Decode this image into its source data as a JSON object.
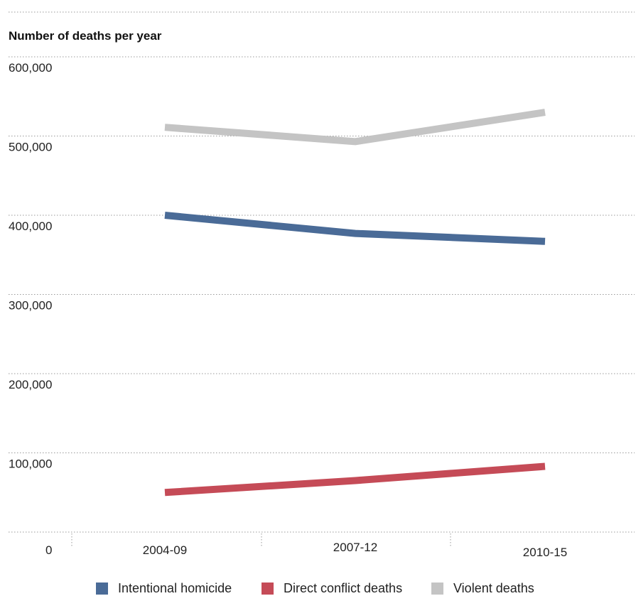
{
  "chart_data": {
    "type": "line",
    "ylabel": "Number of deaths per year",
    "categories": [
      "2004-09",
      "2007-12",
      "2010-15"
    ],
    "ylim": [
      0,
      600000
    ],
    "yticks": [
      0,
      100000,
      200000,
      300000,
      400000,
      500000,
      600000
    ],
    "ytick_labels": [
      "0",
      "100,000",
      "200,000",
      "300,000",
      "400,000",
      "500,000",
      "600,000"
    ],
    "grid": true,
    "legend_position": "bottom",
    "series": [
      {
        "name": "Intentional homicide",
        "color": "#4a6b97",
        "values": [
          400000,
          377000,
          367000
        ]
      },
      {
        "name": "Direct conflict deaths",
        "color": "#c54b57",
        "values": [
          50000,
          65000,
          83000
        ]
      },
      {
        "name": "Violent deaths",
        "color": "#c4c4c4",
        "values": [
          511000,
          493000,
          530000
        ]
      }
    ]
  }
}
